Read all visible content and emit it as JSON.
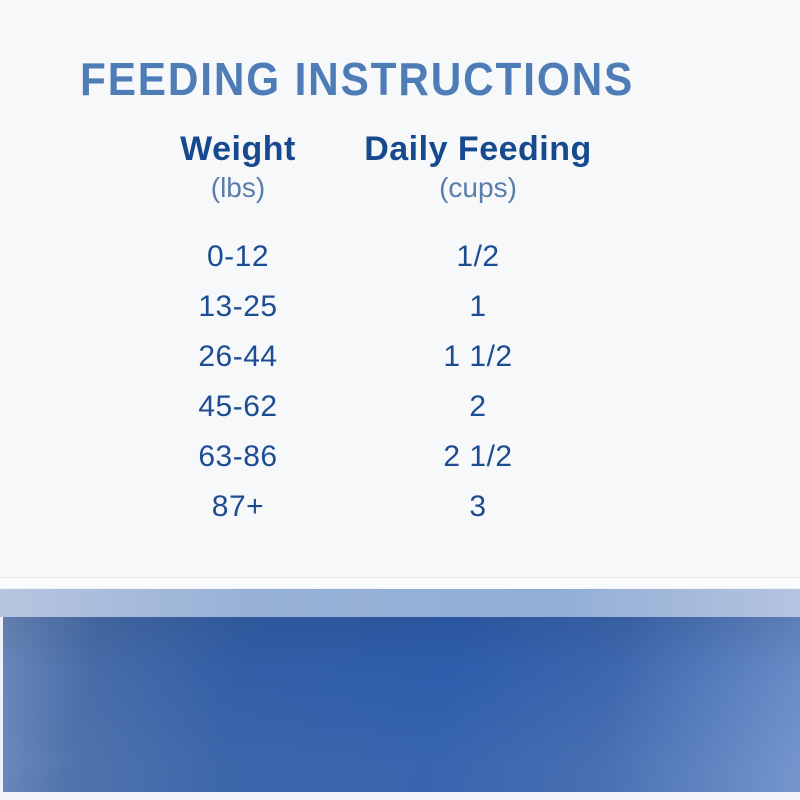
{
  "page": {
    "title": "FEEDING INSTRUCTIONS"
  },
  "table": {
    "columns": [
      {
        "label": "Weight",
        "unit": "(lbs)"
      },
      {
        "label": "Daily Feeding",
        "unit": "(cups)"
      }
    ],
    "rows": [
      {
        "weight": "0-12",
        "cups": "1/2"
      },
      {
        "weight": "13-25",
        "cups": "1"
      },
      {
        "weight": "26-44",
        "cups": "1 1/2"
      },
      {
        "weight": "45-62",
        "cups": "2"
      },
      {
        "weight": "63-86",
        "cups": "2 1/2"
      },
      {
        "weight": "87+",
        "cups": "3"
      }
    ]
  },
  "colors": {
    "title_blue": "#4e7cb7",
    "header_navy": "#17498f",
    "unit_blue": "#5a7dab",
    "value_navy": "#1c4d93",
    "background": "#f7f8f9",
    "band_light_blue": "#93aed6",
    "band_dark_blue": "#2e5dab",
    "band_edge_blue": "#6d8abc"
  }
}
